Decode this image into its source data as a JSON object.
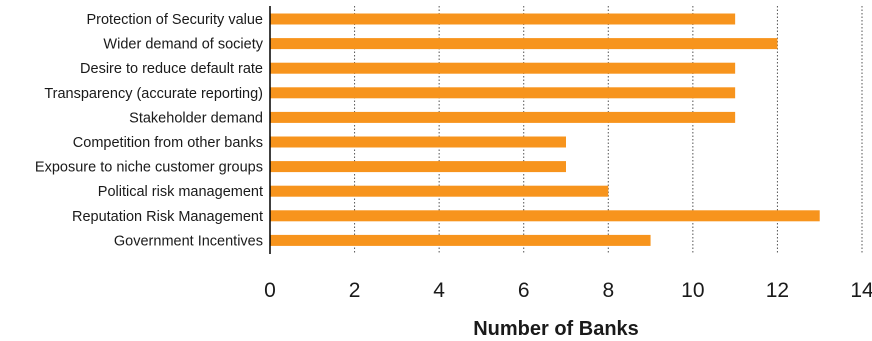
{
  "chart_data": {
    "type": "bar",
    "orientation": "horizontal",
    "categories": [
      "Protection of Security value",
      "Wider demand of society",
      "Desire to reduce default rate",
      "Transparency (accurate reporting)",
      "Stakeholder demand",
      "Competition from other banks",
      "Exposure to niche customer groups",
      "Political risk management",
      "Reputation Risk Management",
      "Government Incentives"
    ],
    "values": [
      11,
      12,
      11,
      11,
      11,
      7,
      7,
      8,
      13,
      9
    ],
    "xlabel": "Number of Banks",
    "ylabel": "",
    "xlim": [
      0,
      14
    ],
    "xticks": [
      "0",
      "2",
      "4",
      "6",
      "8",
      "10",
      "12",
      "14"
    ],
    "grid": "vertical dotted",
    "bar_color": "#F7941D"
  }
}
